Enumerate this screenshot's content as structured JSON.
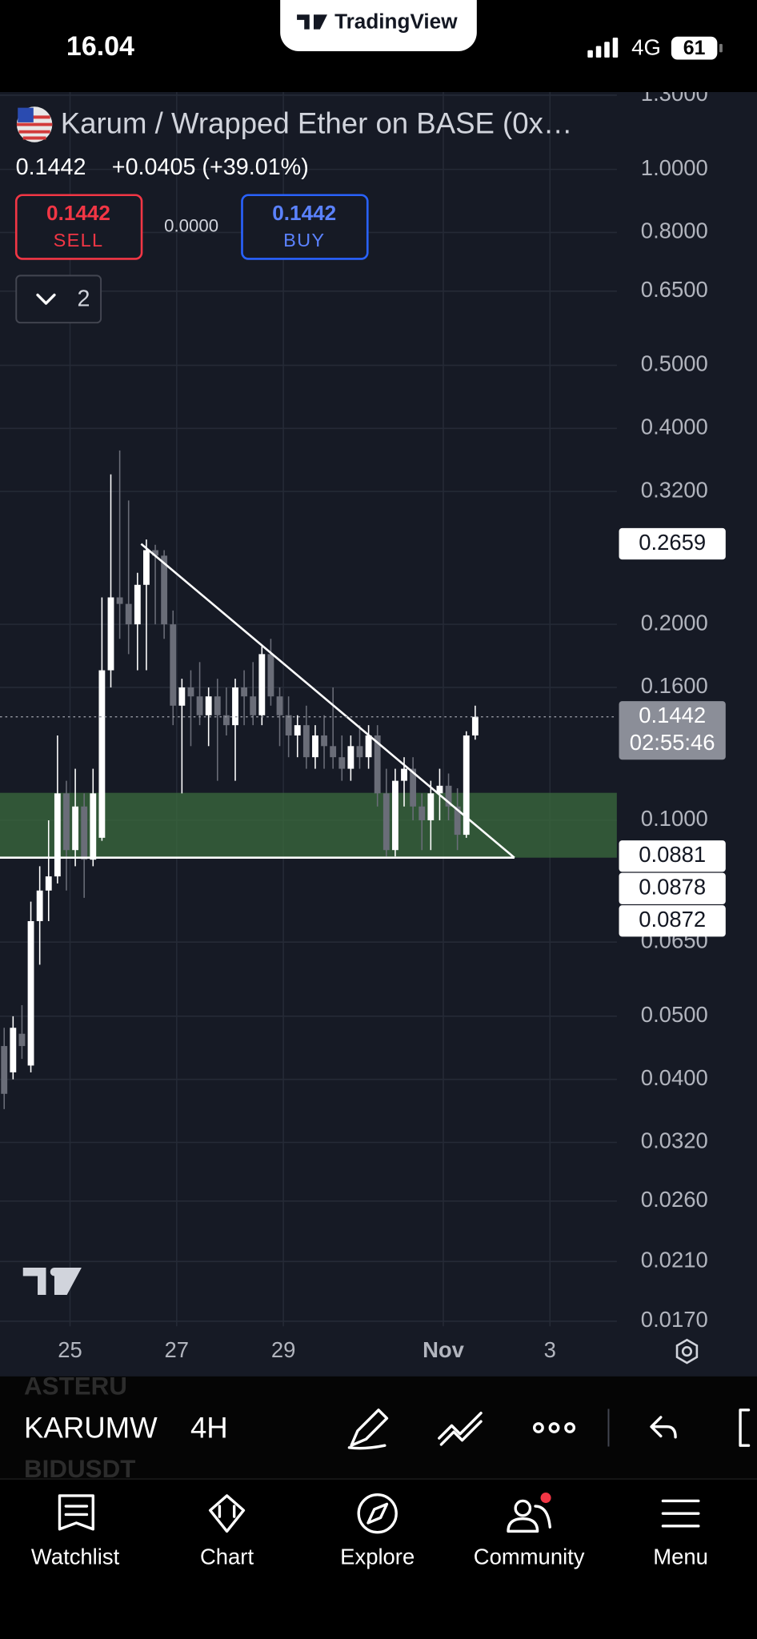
{
  "status_bar": {
    "time": "16.04",
    "network": "4G",
    "battery": "61"
  },
  "brand": "TradingView",
  "header": {
    "symbol": "Karum / Wrapped Ether on BASE (0x…",
    "price": "0.1442",
    "change": "+0.0405 (+39.01%)",
    "sell": {
      "price": "0.1442",
      "label": "SELL"
    },
    "spread": "0.0000",
    "buy": {
      "price": "0.1442",
      "label": "BUY"
    },
    "indicators": "2"
  },
  "chart_data": {
    "type": "candlestick",
    "log_scale": true,
    "grid": true,
    "ylim": [
      0.0167,
      1.354
    ],
    "yticks": [
      {
        "value": 1.3,
        "label": "1.3000"
      },
      {
        "value": 1,
        "label": "1.0000"
      },
      {
        "value": 0.8,
        "label": "0.8000"
      },
      {
        "value": 0.65,
        "label": "0.6500"
      },
      {
        "value": 0.5,
        "label": "0.5000"
      },
      {
        "value": 0.4,
        "label": "0.4000"
      },
      {
        "value": 0.32,
        "label": "0.3200"
      },
      {
        "value": 0.2,
        "label": "0.2000"
      },
      {
        "value": 0.16,
        "label": "0.1600"
      },
      {
        "value": 0.1,
        "label": "0.1000"
      },
      {
        "value": 0.065,
        "label": "0.0650"
      },
      {
        "value": 0.05,
        "label": "0.0500"
      },
      {
        "value": 0.04,
        "label": "0.0400"
      },
      {
        "value": 0.032,
        "label": "0.0320"
      },
      {
        "value": 0.026,
        "label": "0.0260"
      },
      {
        "value": 0.021,
        "label": "0.0210"
      },
      {
        "value": 0.017,
        "label": "0.0170"
      }
    ],
    "x_labels": [
      "25",
      "27",
      "29",
      "Nov",
      "3"
    ],
    "up_color": "#ffffff",
    "down_color": "#6a6d78",
    "candles": {
      "open": [
        0.045,
        0.041,
        0.047,
        0.042,
        0.07,
        0.078,
        0.082,
        0.11,
        0.09,
        0.105,
        0.087,
        0.094,
        0.17,
        0.22,
        0.215,
        0.2,
        0.23,
        0.26,
        0.255,
        0.2,
        0.15,
        0.16,
        0.155,
        0.145,
        0.155,
        0.145,
        0.14,
        0.16,
        0.155,
        0.145,
        0.18,
        0.155,
        0.145,
        0.135,
        0.14,
        0.125,
        0.135,
        0.13,
        0.125,
        0.12,
        0.13,
        0.125,
        0.135,
        0.11,
        0.09,
        0.115,
        0.12,
        0.105,
        0.1,
        0.11,
        0.113,
        0.105,
        0.095,
        0.135
      ],
      "high": [
        0.048,
        0.05,
        0.052,
        0.075,
        0.085,
        0.1,
        0.135,
        0.115,
        0.12,
        0.11,
        0.12,
        0.22,
        0.34,
        0.37,
        0.31,
        0.24,
        0.27,
        0.265,
        0.26,
        0.21,
        0.165,
        0.17,
        0.175,
        0.16,
        0.165,
        0.16,
        0.165,
        0.17,
        0.175,
        0.185,
        0.19,
        0.16,
        0.155,
        0.145,
        0.15,
        0.14,
        0.145,
        0.16,
        0.135,
        0.135,
        0.14,
        0.14,
        0.14,
        0.12,
        0.12,
        0.125,
        0.125,
        0.11,
        0.115,
        0.12,
        0.118,
        0.112,
        0.137,
        0.15
      ],
      "low": [
        0.036,
        0.04,
        0.043,
        0.041,
        0.06,
        0.07,
        0.08,
        0.078,
        0.085,
        0.076,
        0.085,
        0.093,
        0.16,
        0.19,
        0.18,
        0.17,
        0.17,
        0.2,
        0.19,
        0.14,
        0.11,
        0.13,
        0.14,
        0.13,
        0.115,
        0.135,
        0.115,
        0.14,
        0.14,
        0.14,
        0.15,
        0.13,
        0.125,
        0.125,
        0.12,
        0.12,
        0.12,
        0.12,
        0.115,
        0.115,
        0.12,
        0.12,
        0.105,
        0.088,
        0.088,
        0.105,
        0.1,
        0.09,
        0.09,
        0.1,
        0.1,
        0.09,
        0.094,
        0.133
      ],
      "close": [
        0.038,
        0.048,
        0.045,
        0.07,
        0.078,
        0.082,
        0.11,
        0.09,
        0.105,
        0.087,
        0.11,
        0.17,
        0.22,
        0.215,
        0.2,
        0.23,
        0.26,
        0.255,
        0.2,
        0.15,
        0.16,
        0.155,
        0.145,
        0.155,
        0.145,
        0.14,
        0.16,
        0.155,
        0.145,
        0.18,
        0.155,
        0.145,
        0.135,
        0.14,
        0.125,
        0.135,
        0.13,
        0.125,
        0.12,
        0.13,
        0.125,
        0.135,
        0.11,
        0.09,
        0.115,
        0.12,
        0.105,
        0.1,
        0.11,
        0.113,
        0.105,
        0.095,
        0.135,
        0.1442
      ]
    },
    "price_labels": [
      {
        "value": 0.2659,
        "label": "0.2659"
      },
      {
        "value": 0.1442,
        "label": "0.1442"
      },
      {
        "value": 0.0881,
        "label": "0.0881"
      },
      {
        "value": 0.0878,
        "label": "0.0878"
      },
      {
        "value": 0.0872,
        "label": "0.0872"
      }
    ],
    "last_price_countdown": "02:55:46"
  },
  "toolbar": {
    "watchlist_above": "ASTERU",
    "symbol": "KARUMW",
    "watchlist_below": "BIDUSDT",
    "interval": "4H"
  },
  "nav": [
    "Watchlist",
    "Chart",
    "Explore",
    "Community",
    "Menu"
  ]
}
